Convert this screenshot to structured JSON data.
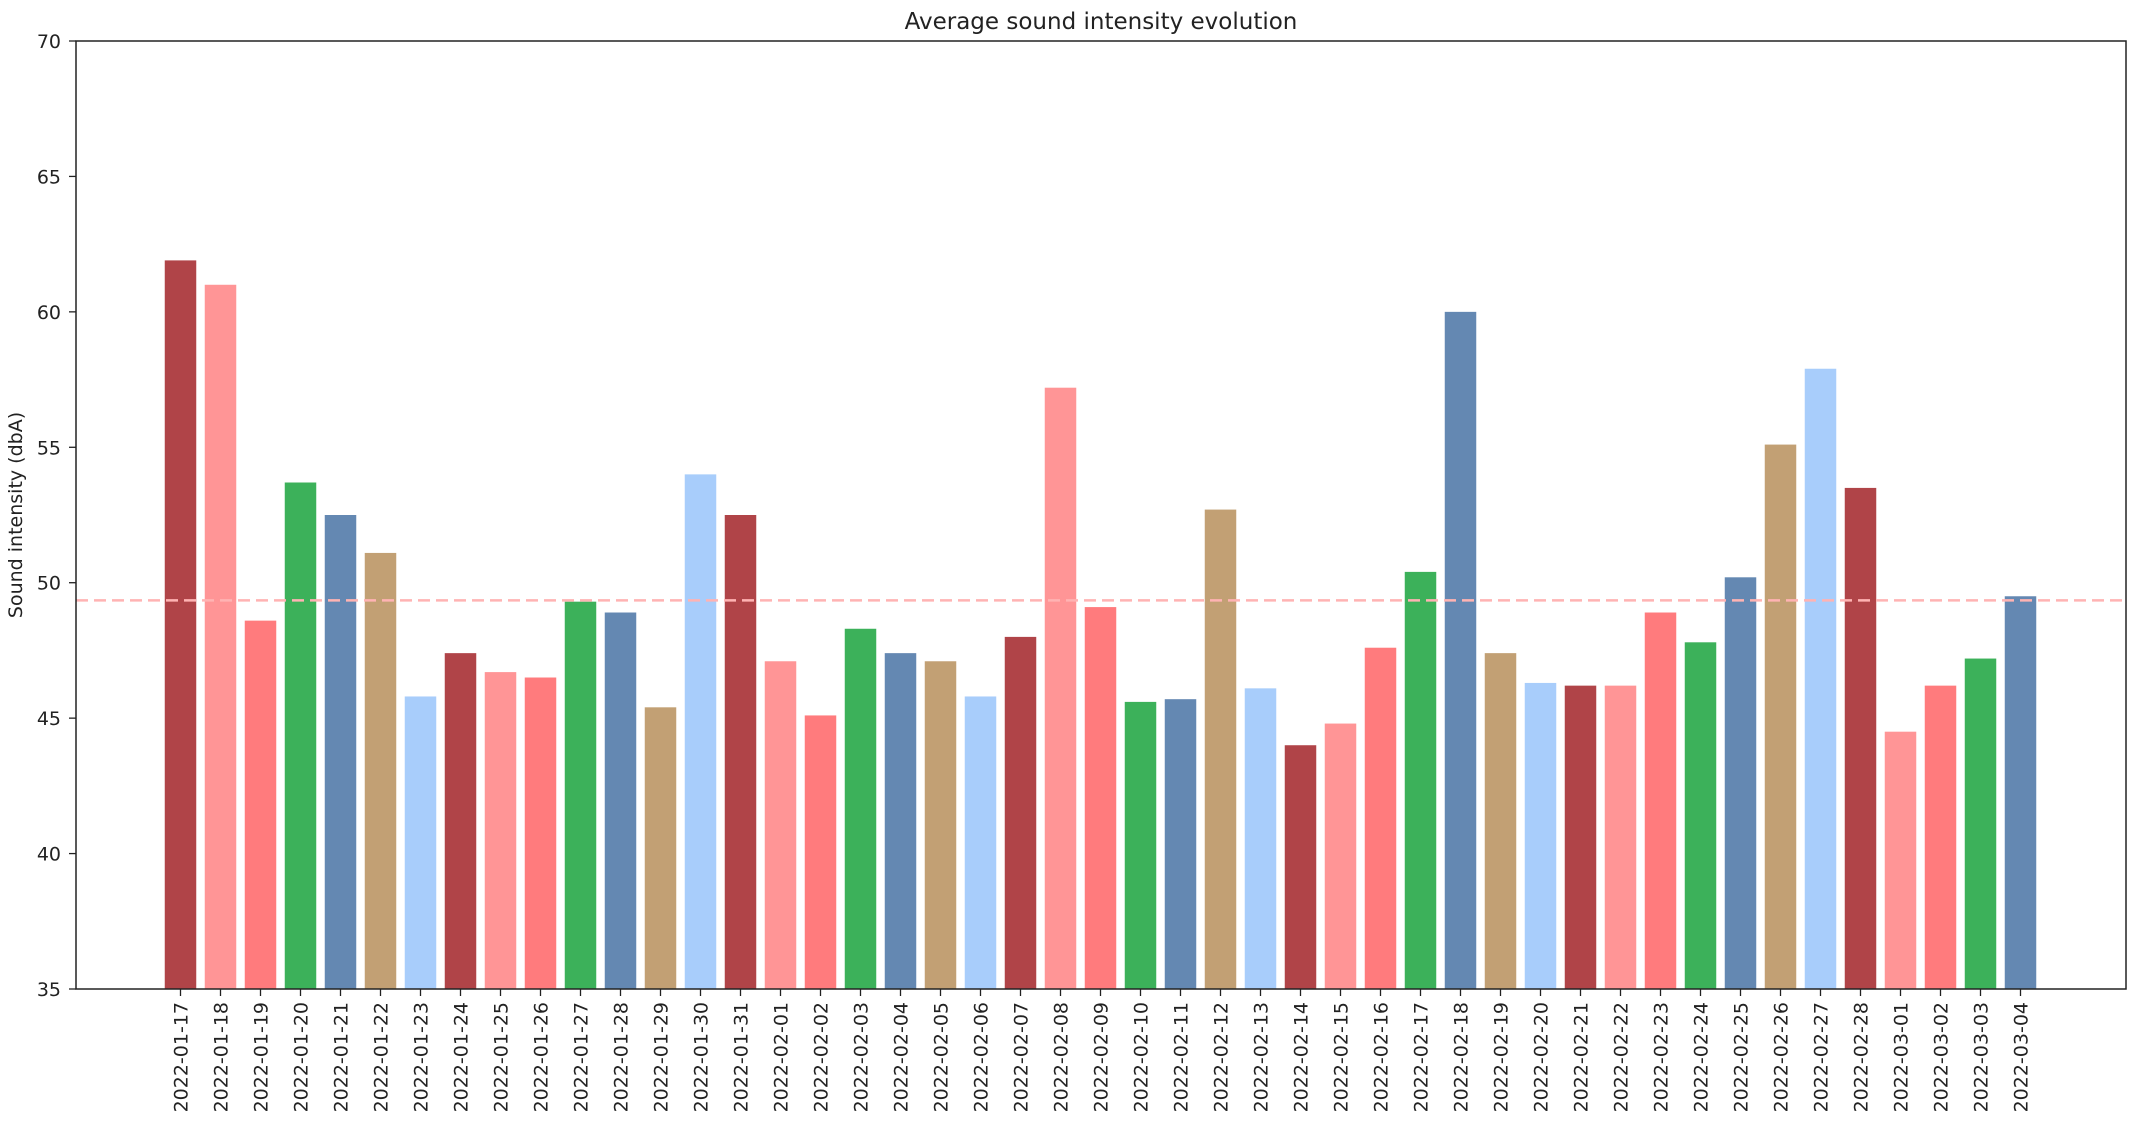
{
  "chart_data": {
    "type": "bar",
    "title": "Average sound intensity evolution",
    "xlabel": "",
    "ylabel": "Sound intensity (dbA)",
    "ylim": [
      35,
      70
    ],
    "yticks": [
      35,
      40,
      45,
      50,
      55,
      60,
      65,
      70
    ],
    "ytick_labels": [
      "35",
      "40",
      "45",
      "50",
      "55",
      "60",
      "65",
      "70"
    ],
    "grid": false,
    "reference_line": {
      "value": 49.35,
      "style": "dashed",
      "color": "#ffb3b3"
    },
    "categories": [
      "2022-01-17",
      "2022-01-18",
      "2022-01-19",
      "2022-01-20",
      "2022-01-21",
      "2022-01-22",
      "2022-01-23",
      "2022-01-24",
      "2022-01-25",
      "2022-01-26",
      "2022-01-27",
      "2022-01-28",
      "2022-01-29",
      "2022-01-30",
      "2022-01-31",
      "2022-02-01",
      "2022-02-02",
      "2022-02-03",
      "2022-02-04",
      "2022-02-05",
      "2022-02-06",
      "2022-02-07",
      "2022-02-08",
      "2022-02-09",
      "2022-02-10",
      "2022-02-11",
      "2022-02-12",
      "2022-02-13",
      "2022-02-14",
      "2022-02-15",
      "2022-02-16",
      "2022-02-17",
      "2022-02-18",
      "2022-02-19",
      "2022-02-20",
      "2022-02-21",
      "2022-02-22",
      "2022-02-23",
      "2022-02-24",
      "2022-02-25",
      "2022-02-26",
      "2022-02-27",
      "2022-02-28",
      "2022-03-01",
      "2022-03-02",
      "2022-03-03",
      "2022-03-04"
    ],
    "values": [
      61.9,
      61.0,
      48.6,
      53.7,
      52.5,
      51.1,
      45.8,
      47.4,
      46.7,
      46.5,
      49.3,
      48.9,
      45.4,
      54.0,
      52.5,
      47.1,
      45.1,
      48.3,
      47.4,
      47.1,
      45.8,
      48.0,
      57.2,
      49.1,
      45.6,
      45.7,
      52.7,
      46.1,
      44.0,
      44.8,
      47.6,
      50.4,
      60.0,
      47.4,
      46.3,
      46.2,
      46.2,
      48.9,
      47.8,
      50.2,
      55.1,
      57.9,
      53.5,
      44.5,
      46.2,
      47.2,
      49.5
    ],
    "colors": [
      "#b04448",
      "#ff9596",
      "#ff7b7d",
      "#3cb15a",
      "#6488b2",
      "#c2a074",
      "#a8cdfb"
    ]
  }
}
